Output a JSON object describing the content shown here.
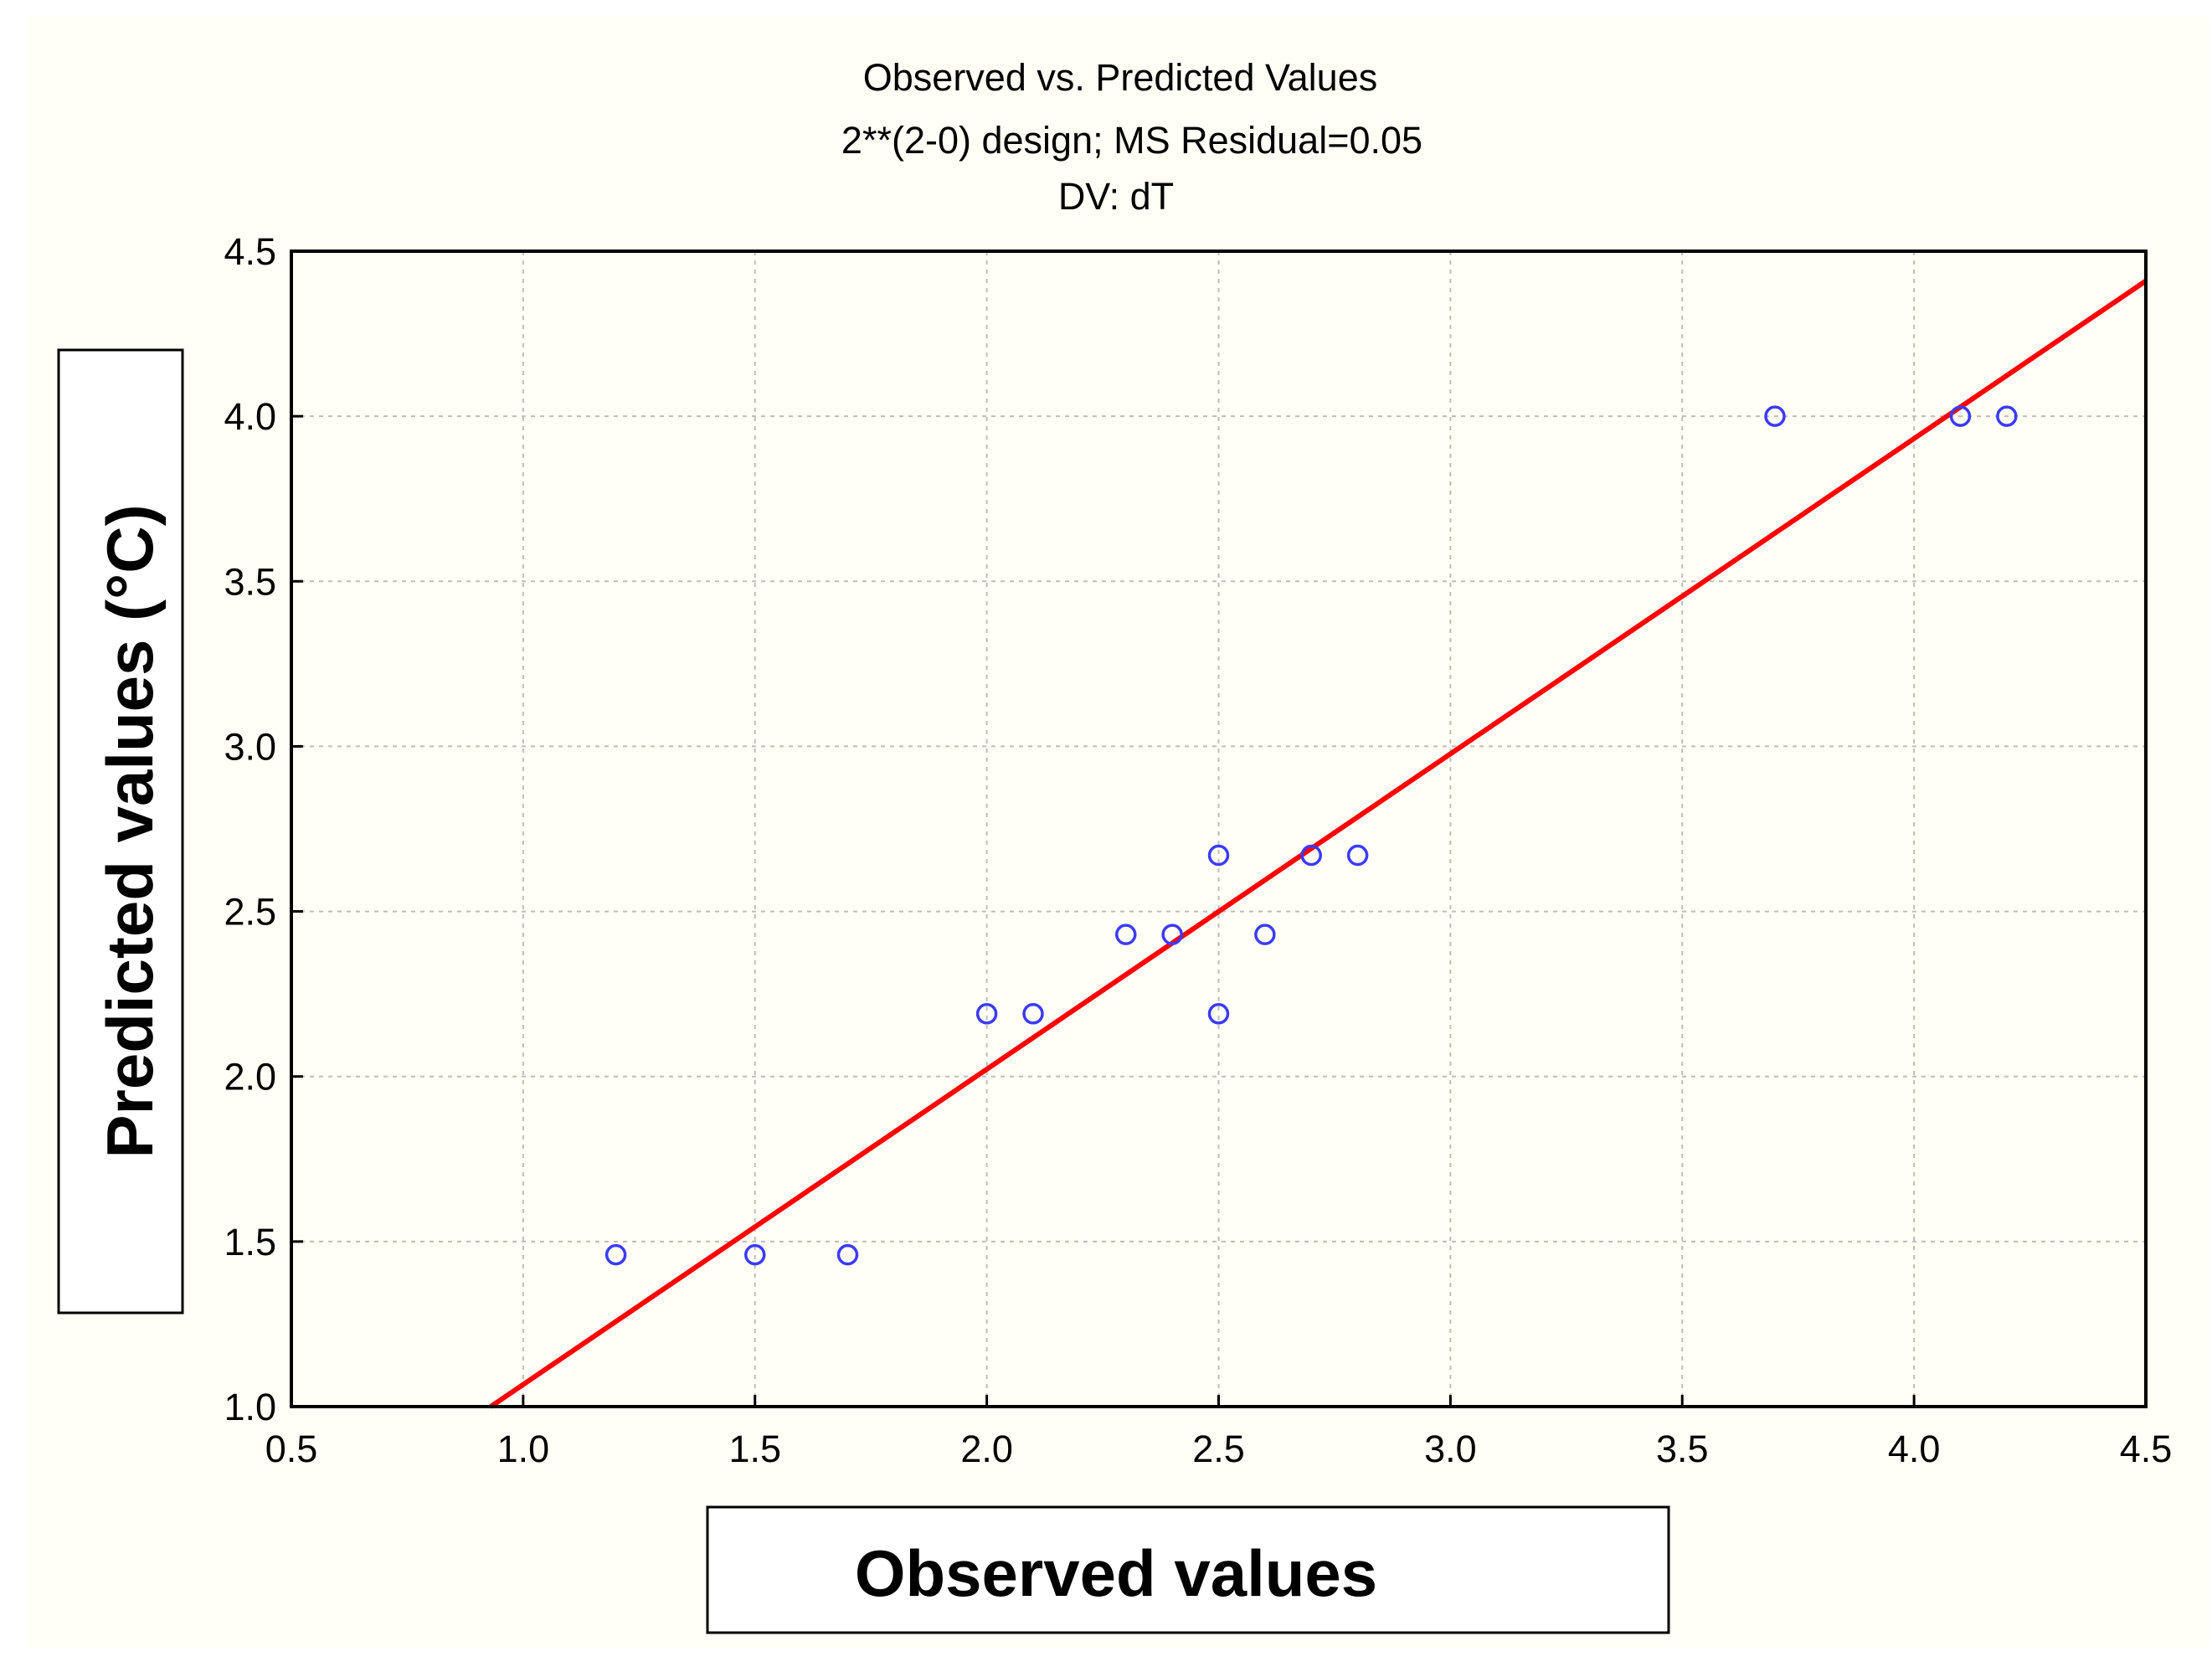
{
  "chart_data": {
    "type": "scatter",
    "title": [
      "Observed vs. Predicted Values",
      "2**(2-0) design; MS Residual=0.05",
      "DV: dT"
    ],
    "xlabel": "Observed values",
    "ylabel": "Predicted values (°C)",
    "xlim": [
      0.5,
      4.5
    ],
    "ylim": [
      1.0,
      4.5
    ],
    "xticks": [
      "0.5",
      "1.0",
      "1.5",
      "2.0",
      "2.5",
      "3.0",
      "3.5",
      "4.0",
      "4.5"
    ],
    "yticks": [
      "1.0",
      "1.5",
      "2.0",
      "2.5",
      "3.0",
      "3.5",
      "4.0",
      "4.5"
    ],
    "grid": true,
    "points": [
      {
        "x": 1.2,
        "y": 1.46
      },
      {
        "x": 1.5,
        "y": 1.46
      },
      {
        "x": 1.7,
        "y": 1.46
      },
      {
        "x": 2.0,
        "y": 2.19
      },
      {
        "x": 2.1,
        "y": 2.19
      },
      {
        "x": 2.5,
        "y": 2.19
      },
      {
        "x": 2.3,
        "y": 2.43
      },
      {
        "x": 2.4,
        "y": 2.43
      },
      {
        "x": 2.6,
        "y": 2.43
      },
      {
        "x": 2.5,
        "y": 2.67
      },
      {
        "x": 2.7,
        "y": 2.67
      },
      {
        "x": 2.8,
        "y": 2.67
      },
      {
        "x": 3.7,
        "y": 4.0
      },
      {
        "x": 4.1,
        "y": 4.0
      },
      {
        "x": 4.2,
        "y": 4.0
      }
    ],
    "fit_line": {
      "x": [
        0.93,
        4.5
      ],
      "y": [
        1.0,
        4.41
      ]
    },
    "colors": {
      "points": "#3b3bff",
      "fit_line": "#ff0000",
      "grid": "#bdbdbd",
      "axis": "#000000"
    }
  }
}
